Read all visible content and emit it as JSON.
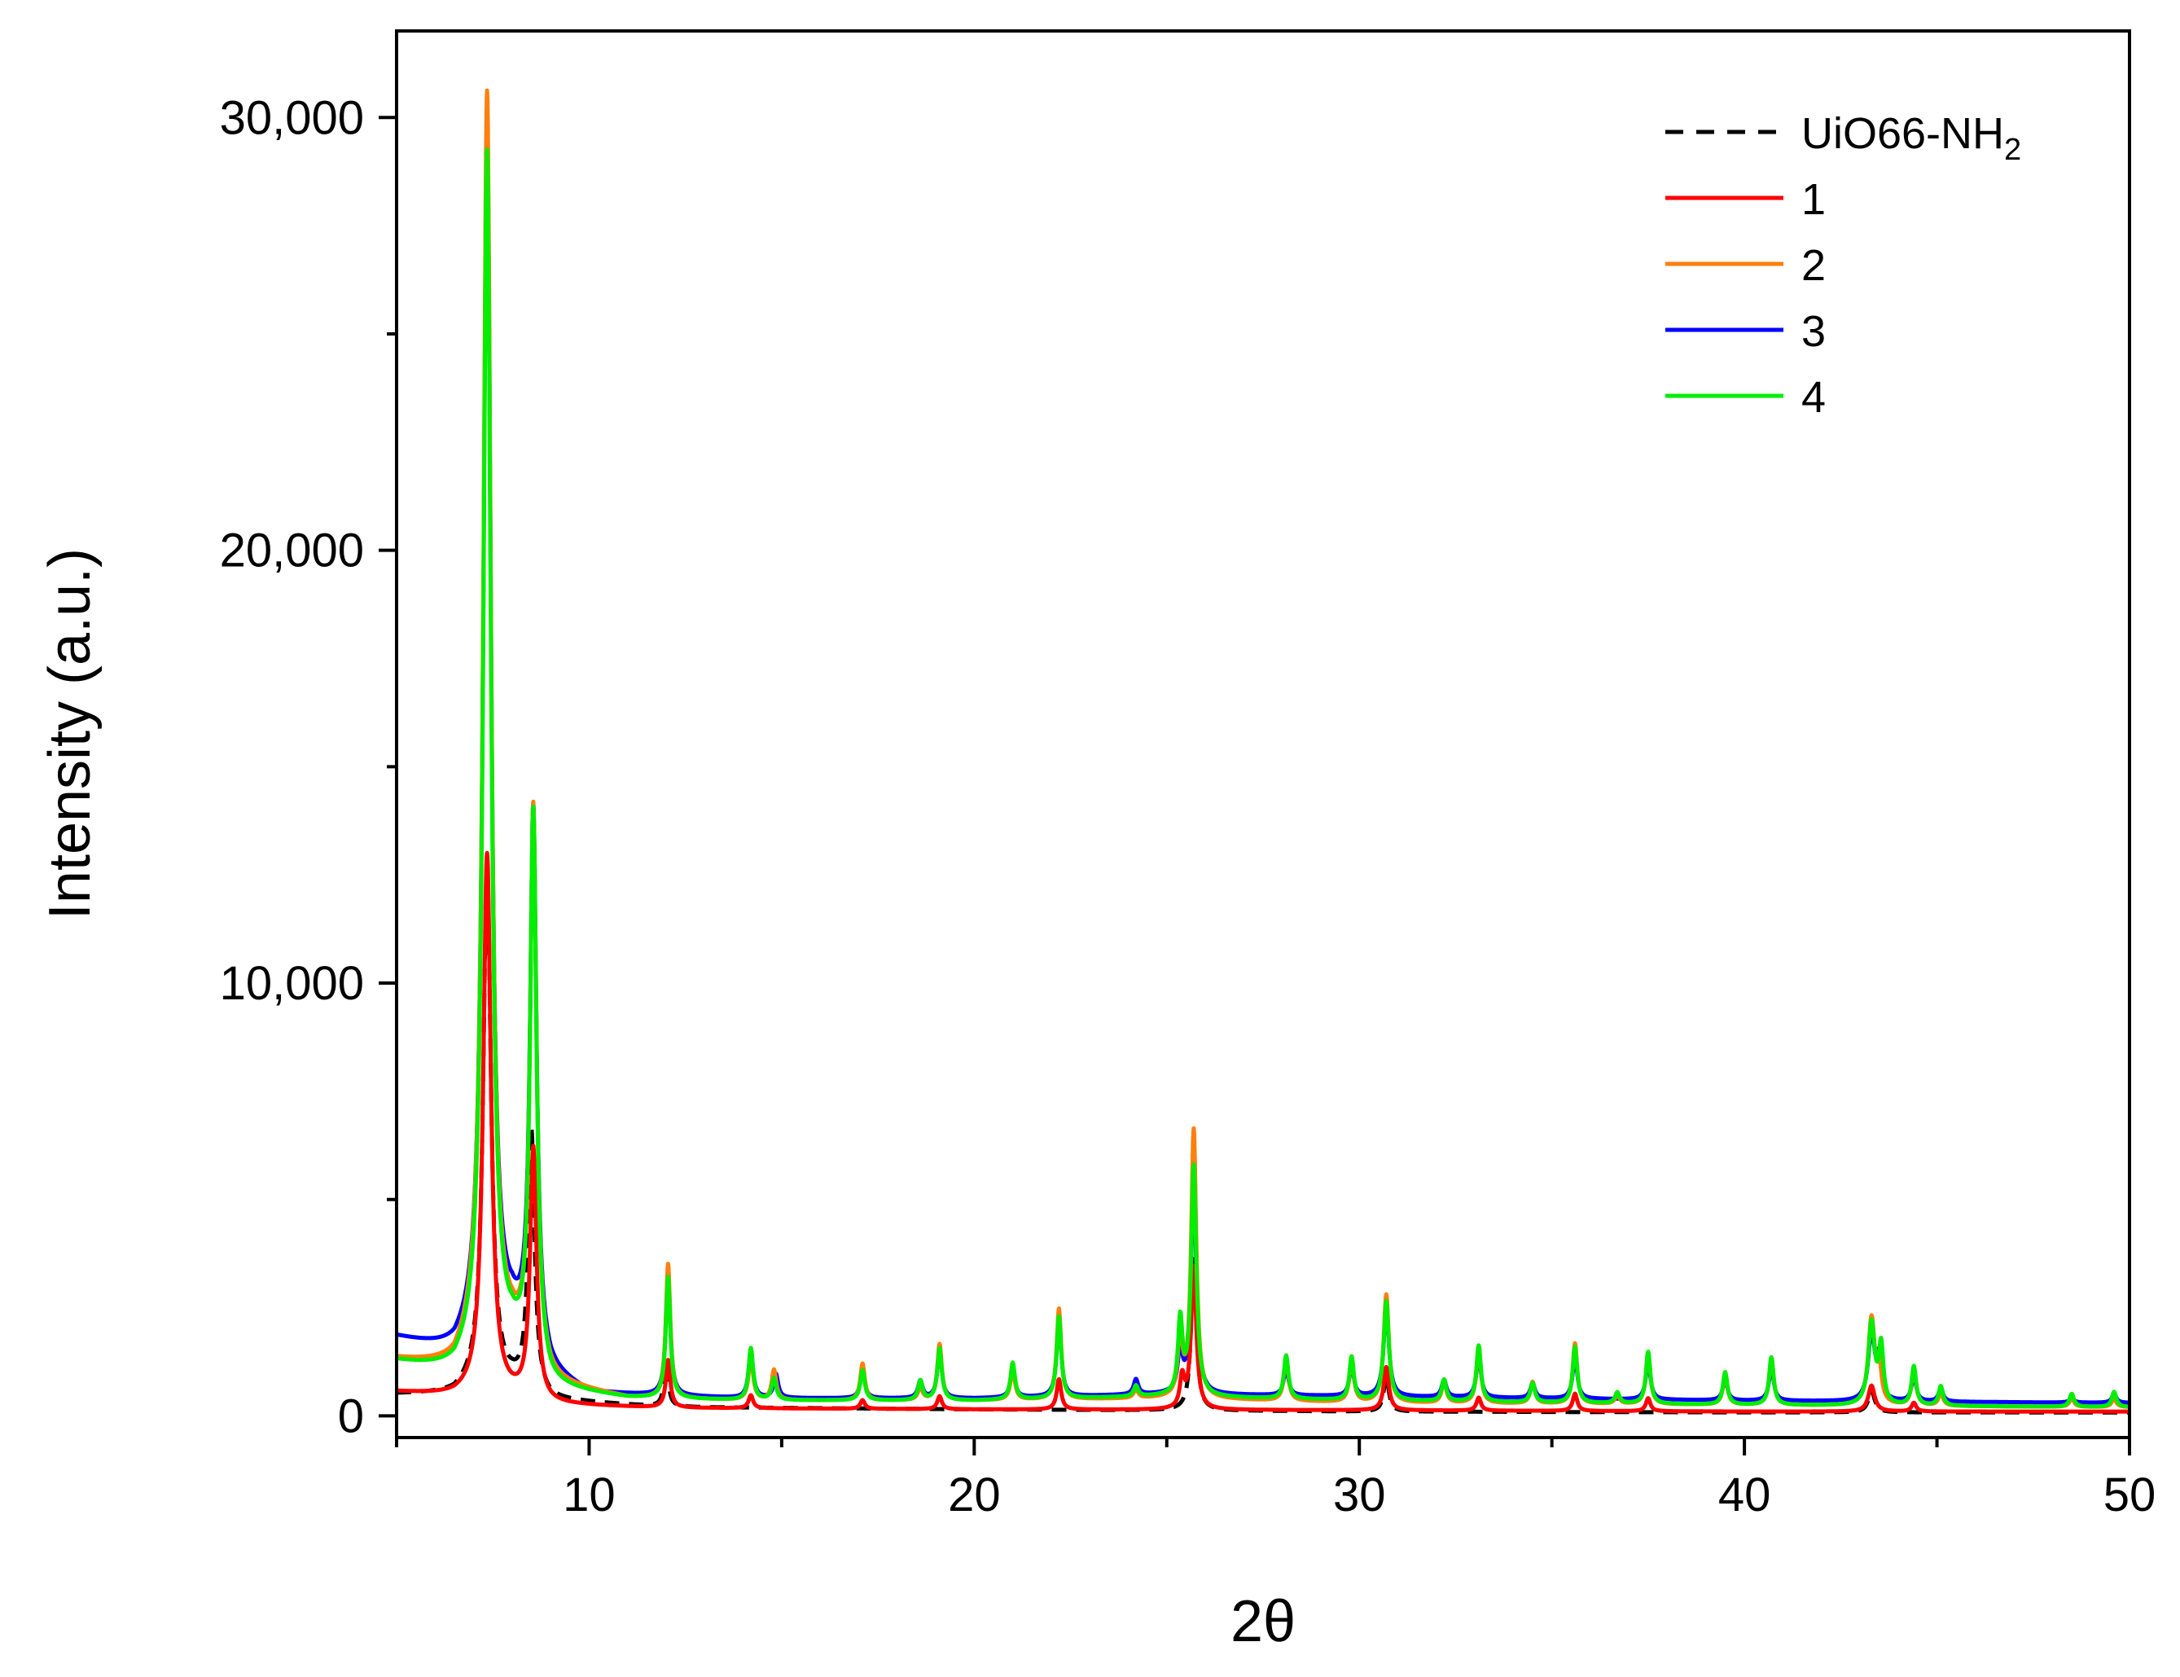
{
  "chart_data": {
    "type": "line",
    "xlabel": "2θ",
    "ylabel": "Intensity  (a.u.)",
    "xlim": [
      5,
      50
    ],
    "ylim": [
      -500,
      32000
    ],
    "x_ticks": [
      10,
      20,
      30,
      40,
      50
    ],
    "x_tick_labels": [
      "10",
      "20",
      "30",
      "40",
      "50"
    ],
    "y_ticks": [
      0,
      10000,
      20000,
      30000
    ],
    "y_tick_labels": [
      "0",
      "10,000",
      "20,000",
      "30,000"
    ],
    "grid": false,
    "legend_position": "top-right",
    "legend": [
      {
        "label": "UiO66-NH",
        "subscript": "2"
      },
      {
        "label": "1",
        "subscript": ""
      },
      {
        "label": "2",
        "subscript": ""
      },
      {
        "label": "3",
        "subscript": ""
      },
      {
        "label": "4",
        "subscript": ""
      }
    ],
    "series": [
      {
        "name": "UiO66-NH2",
        "color": "#000000",
        "dash": "dashed",
        "baseline": [
          [
            5,
            500
          ],
          [
            6.5,
            500
          ],
          [
            7,
            700
          ],
          [
            8,
            700
          ],
          [
            9,
            350
          ],
          [
            12,
            200
          ],
          [
            20,
            150
          ],
          [
            30,
            100
          ],
          [
            40,
            80
          ],
          [
            50,
            80
          ]
        ],
        "peaks": [
          [
            7.35,
            12000,
            0.12
          ],
          [
            8.5,
            6000,
            0.1
          ],
          [
            12.0,
            1000,
            0.07
          ],
          [
            25.7,
            3500,
            0.08
          ],
          [
            30.7,
            800,
            0.08
          ],
          [
            43.3,
            500,
            0.1
          ]
        ]
      },
      {
        "name": "1",
        "color": "#ff0000",
        "dash": "solid",
        "baseline": [
          [
            5,
            550
          ],
          [
            6.5,
            450
          ],
          [
            7,
            500
          ],
          [
            8,
            400
          ],
          [
            9,
            250
          ],
          [
            12,
            180
          ],
          [
            20,
            150
          ],
          [
            30,
            130
          ],
          [
            40,
            100
          ],
          [
            50,
            100
          ]
        ],
        "peaks": [
          [
            7.35,
            12500,
            0.12
          ],
          [
            8.55,
            5800,
            0.1
          ],
          [
            12.05,
            1100,
            0.07
          ],
          [
            14.2,
            300,
            0.07
          ],
          [
            17.1,
            200,
            0.07
          ],
          [
            19.1,
            300,
            0.07
          ],
          [
            22.2,
            700,
            0.07
          ],
          [
            25.4,
            700,
            0.07
          ],
          [
            25.7,
            3300,
            0.08
          ],
          [
            30.7,
            1000,
            0.08
          ],
          [
            33.1,
            300,
            0.07
          ],
          [
            35.6,
            400,
            0.07
          ],
          [
            37.5,
            300,
            0.07
          ],
          [
            43.3,
            600,
            0.1
          ],
          [
            44.4,
            200,
            0.07
          ]
        ]
      },
      {
        "name": "2",
        "color": "#ff7f0e",
        "dash": "solid",
        "baseline": [
          [
            5,
            1300
          ],
          [
            6.5,
            1100
          ],
          [
            7,
            1500
          ],
          [
            8,
            1600
          ],
          [
            9,
            700
          ],
          [
            11,
            400
          ],
          [
            14,
            350
          ],
          [
            20,
            350
          ],
          [
            25,
            400
          ],
          [
            30,
            300
          ],
          [
            40,
            250
          ],
          [
            50,
            200
          ]
        ],
        "peaks": [
          [
            7.35,
            29000,
            0.12
          ],
          [
            8.55,
            12800,
            0.1
          ],
          [
            12.05,
            3100,
            0.07
          ],
          [
            14.2,
            1000,
            0.07
          ],
          [
            14.8,
            700,
            0.07
          ],
          [
            17.1,
            850,
            0.07
          ],
          [
            18.6,
            300,
            0.07
          ],
          [
            19.1,
            1300,
            0.07
          ],
          [
            21.0,
            700,
            0.07
          ],
          [
            22.2,
            2100,
            0.07
          ],
          [
            24.2,
            200,
            0.07
          ],
          [
            25.35,
            1400,
            0.07
          ],
          [
            25.7,
            6200,
            0.08
          ],
          [
            28.1,
            1000,
            0.07
          ],
          [
            29.8,
            1000,
            0.07
          ],
          [
            30.7,
            2500,
            0.08
          ],
          [
            32.2,
            500,
            0.07
          ],
          [
            33.1,
            1300,
            0.07
          ],
          [
            34.5,
            500,
            0.07
          ],
          [
            35.6,
            1400,
            0.07
          ],
          [
            36.7,
            200,
            0.07
          ],
          [
            37.5,
            1200,
            0.07
          ],
          [
            39.5,
            700,
            0.07
          ],
          [
            40.7,
            1100,
            0.07
          ],
          [
            43.3,
            2000,
            0.1
          ],
          [
            43.5,
            800,
            0.07
          ],
          [
            44.4,
            850,
            0.07
          ],
          [
            45.1,
            300,
            0.07
          ],
          [
            48.5,
            200,
            0.07
          ],
          [
            49.6,
            200,
            0.07
          ]
        ]
      },
      {
        "name": "3",
        "color": "#0000ff",
        "dash": "solid",
        "baseline": [
          [
            5,
            1800
          ],
          [
            6.5,
            1450
          ],
          [
            7,
            1700
          ],
          [
            8,
            2000
          ],
          [
            9,
            900
          ],
          [
            10,
            500
          ],
          [
            14,
            400
          ],
          [
            20,
            400
          ],
          [
            25,
            500
          ],
          [
            30,
            450
          ],
          [
            40,
            350
          ],
          [
            50,
            300
          ]
        ],
        "peaks": [
          [
            7.35,
            28000,
            0.12
          ],
          [
            8.55,
            12500,
            0.1
          ],
          [
            12.05,
            2800,
            0.07
          ],
          [
            14.2,
            1100,
            0.07
          ],
          [
            14.85,
            550,
            0.07
          ],
          [
            17.1,
            650,
            0.07
          ],
          [
            18.6,
            400,
            0.07
          ],
          [
            19.1,
            1100,
            0.07
          ],
          [
            21.0,
            650,
            0.07
          ],
          [
            22.2,
            1800,
            0.07
          ],
          [
            24.2,
            350,
            0.07
          ],
          [
            25.35,
            1000,
            0.07
          ],
          [
            25.7,
            5000,
            0.08
          ],
          [
            28.1,
            650,
            0.07
          ],
          [
            29.8,
            700,
            0.07
          ],
          [
            30.7,
            2100,
            0.08
          ],
          [
            32.2,
            400,
            0.07
          ],
          [
            33.1,
            1000,
            0.07
          ],
          [
            34.5,
            350,
            0.07
          ],
          [
            35.6,
            1000,
            0.07
          ],
          [
            37.5,
            900,
            0.07
          ],
          [
            39.5,
            500,
            0.07
          ],
          [
            40.7,
            800,
            0.07
          ],
          [
            43.3,
            1600,
            0.1
          ],
          [
            43.5,
            900,
            0.07
          ],
          [
            44.4,
            600,
            0.07
          ],
          [
            45.1,
            300,
            0.07
          ],
          [
            48.5,
            100,
            0.07
          ],
          [
            49.6,
            200,
            0.07
          ]
        ]
      },
      {
        "name": "4",
        "color": "#00ee00",
        "dash": "solid",
        "baseline": [
          [
            5,
            1250
          ],
          [
            6.5,
            1000
          ],
          [
            7,
            1300
          ],
          [
            8,
            1500
          ],
          [
            9,
            600
          ],
          [
            11,
            400
          ],
          [
            14,
            350
          ],
          [
            20,
            350
          ],
          [
            25,
            450
          ],
          [
            30,
            350
          ],
          [
            40,
            250
          ],
          [
            50,
            200
          ]
        ],
        "peaks": [
          [
            7.35,
            27800,
            0.12
          ],
          [
            8.55,
            12800,
            0.1
          ],
          [
            12.05,
            2800,
            0.07
          ],
          [
            14.2,
            1200,
            0.07
          ],
          [
            14.8,
            500,
            0.07
          ],
          [
            17.1,
            700,
            0.07
          ],
          [
            18.6,
            450,
            0.07
          ],
          [
            19.1,
            1200,
            0.07
          ],
          [
            21.0,
            850,
            0.07
          ],
          [
            22.2,
            1900,
            0.07
          ],
          [
            24.2,
            250,
            0.07
          ],
          [
            25.35,
            1700,
            0.07
          ],
          [
            25.7,
            5300,
            0.08
          ],
          [
            28.1,
            1000,
            0.07
          ],
          [
            29.8,
            1000,
            0.07
          ],
          [
            30.7,
            2300,
            0.08
          ],
          [
            32.2,
            500,
            0.07
          ],
          [
            33.1,
            1300,
            0.07
          ],
          [
            34.5,
            450,
            0.07
          ],
          [
            35.6,
            1300,
            0.07
          ],
          [
            36.7,
            250,
            0.07
          ],
          [
            37.5,
            1200,
            0.07
          ],
          [
            39.5,
            750,
            0.07
          ],
          [
            40.7,
            1100,
            0.07
          ],
          [
            43.3,
            1900,
            0.1
          ],
          [
            43.55,
            1300,
            0.07
          ],
          [
            44.4,
            900,
            0.07
          ],
          [
            45.1,
            450,
            0.07
          ],
          [
            48.5,
            300,
            0.07
          ],
          [
            49.6,
            350,
            0.07
          ]
        ]
      }
    ]
  }
}
